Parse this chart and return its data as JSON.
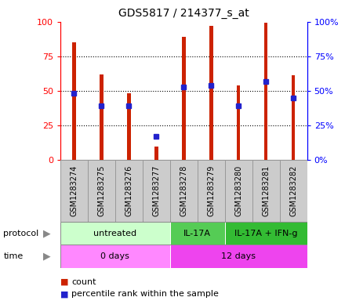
{
  "title": "GDS5817 / 214377_s_at",
  "samples": [
    "GSM1283274",
    "GSM1283275",
    "GSM1283276",
    "GSM1283277",
    "GSM1283278",
    "GSM1283279",
    "GSM1283280",
    "GSM1283281",
    "GSM1283282"
  ],
  "counts": [
    85,
    62,
    48,
    10,
    89,
    97,
    54,
    99,
    61
  ],
  "percentiles": [
    48,
    39,
    39,
    17,
    53,
    54,
    39,
    57,
    45
  ],
  "bar_color": "#cc2200",
  "dot_color": "#2222cc",
  "protocol_groups": [
    {
      "label": "untreated",
      "start": 0,
      "end": 4,
      "color": "#ccffcc"
    },
    {
      "label": "IL-17A",
      "start": 4,
      "end": 6,
      "color": "#55cc55"
    },
    {
      "label": "IL-17A + IFN-g",
      "start": 6,
      "end": 9,
      "color": "#33bb33"
    }
  ],
  "time_groups": [
    {
      "label": "0 days",
      "start": 0,
      "end": 4,
      "color": "#ff88ff"
    },
    {
      "label": "12 days",
      "start": 4,
      "end": 9,
      "color": "#ee44ee"
    }
  ],
  "legend_count_color": "#cc2200",
  "legend_percentile_color": "#2222cc",
  "ylim": [
    0,
    100
  ],
  "yticks": [
    0,
    25,
    50,
    75,
    100
  ],
  "background_color": "#ffffff",
  "sample_box_color": "#cccccc",
  "sample_box_edge": "#999999"
}
